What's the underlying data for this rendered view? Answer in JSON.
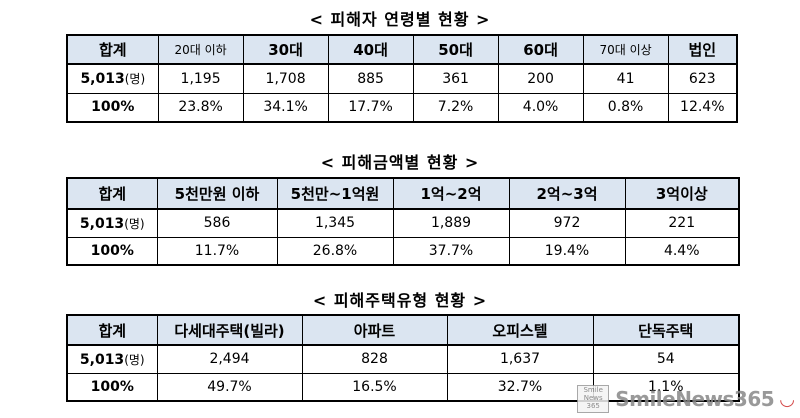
{
  "sections": [
    {
      "title": "< 피해자 연령별 현황 >",
      "headers": [
        "합계",
        "20대 이하",
        "30대",
        "40대",
        "50대",
        "60대",
        "70대 이상",
        "법인"
      ],
      "count_row": {
        "total": "5,013",
        "unit": "(명)",
        "values": [
          "1,195",
          "1,708",
          "885",
          "361",
          "200",
          "41",
          "623"
        ]
      },
      "percent_row": {
        "total": "100%",
        "values": [
          "23.8%",
          "34.1%",
          "17.7%",
          "7.2%",
          "4.0%",
          "0.8%",
          "12.4%"
        ]
      }
    },
    {
      "title": "< 피해금액별 현황 >",
      "headers": [
        "합계",
        "5천만원 이하",
        "5천만~1억원",
        "1억~2억",
        "2억~3억",
        "3억이상"
      ],
      "count_row": {
        "total": "5,013",
        "unit": "(명)",
        "values": [
          "586",
          "1,345",
          "1,889",
          "972",
          "221"
        ]
      },
      "percent_row": {
        "total": "100%",
        "values": [
          "11.7%",
          "26.8%",
          "37.7%",
          "19.4%",
          "4.4%"
        ]
      }
    },
    {
      "title": "< 피해주택유형 현황 >",
      "headers": [
        "합계",
        "다세대주택(빌라)",
        "아파트",
        "오피스텔",
        "단독주택"
      ],
      "count_row": {
        "total": "5,013",
        "unit": "(명)",
        "values": [
          "2,494",
          "828",
          "1,637",
          "54"
        ]
      },
      "percent_row": {
        "total": "100%",
        "values": [
          "49.7%",
          "16.5%",
          "32.7%",
          "1.1%"
        ]
      }
    }
  ],
  "watermark": {
    "logo": "Smile News 365",
    "text": "SmileNews365"
  }
}
